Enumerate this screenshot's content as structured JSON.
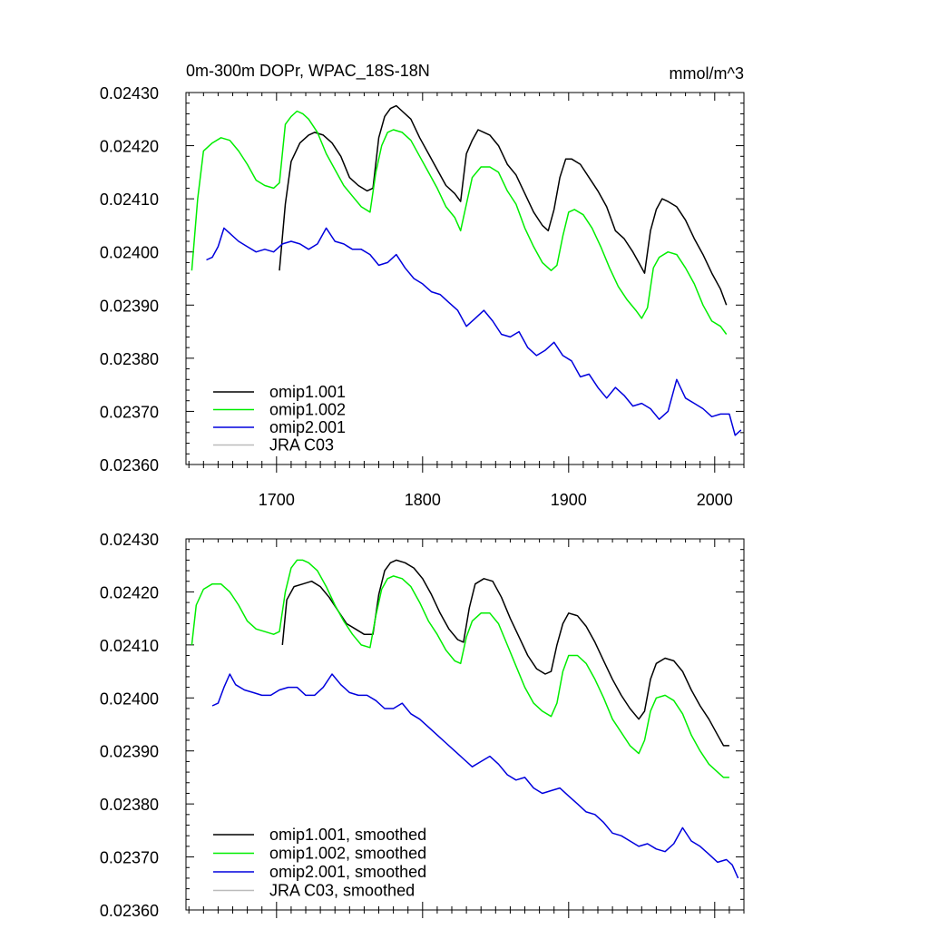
{
  "chart_data": [
    {
      "type": "line",
      "title": "0m-300m DOPr, WPAC_18S-18N",
      "units": "mmol/m^3",
      "xlabel": "",
      "ylabel": "",
      "xlim": [
        1638,
        2020
      ],
      "ylim": [
        0.0236,
        0.0243
      ],
      "x_ticks": [
        1700,
        1800,
        1900,
        2000
      ],
      "x_tick_labels": [
        "1700",
        "1800",
        "1900",
        "2000"
      ],
      "y_ticks": [
        0.0243,
        0.0242,
        0.0241,
        0.024,
        0.0239,
        0.0238,
        0.0237,
        0.0236
      ],
      "y_tick_labels": [
        "0.02430",
        "0.02420",
        "0.02410",
        "0.02400",
        "0.02390",
        "0.02380",
        "0.02370",
        "0.02360"
      ],
      "legend_position": "bottom-left",
      "series": [
        {
          "name": "omip1.001",
          "color": "#000000",
          "x": [
            1702,
            1706,
            1710,
            1716,
            1722,
            1726,
            1732,
            1738,
            1744,
            1750,
            1756,
            1762,
            1766,
            1770,
            1774,
            1778,
            1782,
            1786,
            1792,
            1798,
            1804,
            1810,
            1816,
            1822,
            1826,
            1830,
            1834,
            1838,
            1842,
            1846,
            1852,
            1858,
            1864,
            1870,
            1876,
            1882,
            1886,
            1890,
            1894,
            1898,
            1902,
            1908,
            1914,
            1920,
            1926,
            1932,
            1938,
            1944,
            1948,
            1952,
            1956,
            1960,
            1964,
            1968,
            1974,
            1980,
            1986,
            1992,
            1998,
            2004,
            2008
          ],
          "values": [
            0.023965,
            0.02409,
            0.02417,
            0.024205,
            0.02422,
            0.024225,
            0.02422,
            0.024205,
            0.02418,
            0.02414,
            0.024125,
            0.024115,
            0.02412,
            0.024215,
            0.024255,
            0.02427,
            0.024275,
            0.024265,
            0.02425,
            0.024215,
            0.024185,
            0.024155,
            0.024125,
            0.02411,
            0.024095,
            0.024185,
            0.02421,
            0.02423,
            0.024225,
            0.02422,
            0.0242,
            0.024165,
            0.024145,
            0.02411,
            0.024075,
            0.02405,
            0.02404,
            0.02408,
            0.02414,
            0.024175,
            0.024175,
            0.024165,
            0.02414,
            0.024115,
            0.024085,
            0.02404,
            0.024025,
            0.024,
            0.02398,
            0.02396,
            0.02404,
            0.02408,
            0.0241,
            0.024095,
            0.024085,
            0.02406,
            0.024025,
            0.023995,
            0.02396,
            0.02393,
            0.0239
          ]
        },
        {
          "name": "omip1.002",
          "color": "#00ee00",
          "x": [
            1642,
            1646,
            1650,
            1656,
            1662,
            1668,
            1674,
            1680,
            1686,
            1692,
            1698,
            1702,
            1706,
            1710,
            1714,
            1718,
            1722,
            1728,
            1734,
            1740,
            1746,
            1752,
            1758,
            1764,
            1768,
            1772,
            1776,
            1780,
            1786,
            1792,
            1798,
            1804,
            1810,
            1816,
            1822,
            1826,
            1830,
            1834,
            1840,
            1846,
            1852,
            1858,
            1864,
            1870,
            1876,
            1882,
            1888,
            1892,
            1896,
            1900,
            1904,
            1910,
            1916,
            1922,
            1928,
            1934,
            1940,
            1946,
            1950,
            1954,
            1958,
            1962,
            1968,
            1974,
            1980,
            1986,
            1992,
            1998,
            2004,
            2008
          ],
          "values": [
            0.023965,
            0.0241,
            0.02419,
            0.024205,
            0.024215,
            0.02421,
            0.02419,
            0.024165,
            0.024135,
            0.024125,
            0.02412,
            0.02413,
            0.02424,
            0.024255,
            0.024265,
            0.02426,
            0.02425,
            0.024225,
            0.024185,
            0.024155,
            0.024125,
            0.024105,
            0.024085,
            0.024075,
            0.02415,
            0.0242,
            0.024225,
            0.02423,
            0.024225,
            0.02421,
            0.02418,
            0.02415,
            0.02412,
            0.024085,
            0.024065,
            0.02404,
            0.02409,
            0.02414,
            0.02416,
            0.02416,
            0.02415,
            0.024115,
            0.02409,
            0.024045,
            0.02401,
            0.02398,
            0.023965,
            0.023975,
            0.02403,
            0.024075,
            0.02408,
            0.02407,
            0.024045,
            0.02401,
            0.02397,
            0.023935,
            0.02391,
            0.02389,
            0.023875,
            0.023895,
            0.02397,
            0.02399,
            0.024,
            0.023995,
            0.02397,
            0.02394,
            0.0239,
            0.02387,
            0.02386,
            0.023845
          ]
        },
        {
          "name": "omip2.001",
          "color": "#0000dd",
          "x": [
            1652,
            1656,
            1660,
            1664,
            1668,
            1674,
            1680,
            1686,
            1692,
            1698,
            1704,
            1710,
            1716,
            1722,
            1728,
            1734,
            1740,
            1746,
            1752,
            1758,
            1764,
            1770,
            1776,
            1782,
            1788,
            1794,
            1800,
            1806,
            1812,
            1818,
            1824,
            1830,
            1836,
            1842,
            1848,
            1854,
            1860,
            1866,
            1872,
            1878,
            1884,
            1890,
            1896,
            1902,
            1908,
            1914,
            1920,
            1926,
            1932,
            1938,
            1944,
            1950,
            1956,
            1962,
            1968,
            1974,
            1980,
            1986,
            1992,
            1998,
            2004,
            2010,
            2014,
            2018
          ],
          "values": [
            0.023985,
            0.02399,
            0.02401,
            0.024045,
            0.024035,
            0.02402,
            0.02401,
            0.024,
            0.024005,
            0.024,
            0.024015,
            0.02402,
            0.024015,
            0.024005,
            0.024015,
            0.024045,
            0.02402,
            0.024015,
            0.024005,
            0.024005,
            0.023995,
            0.023975,
            0.02398,
            0.023995,
            0.02397,
            0.02395,
            0.02394,
            0.023925,
            0.02392,
            0.023905,
            0.02389,
            0.02386,
            0.023875,
            0.02389,
            0.02387,
            0.023845,
            0.02384,
            0.02385,
            0.02382,
            0.023805,
            0.023815,
            0.02383,
            0.023805,
            0.023795,
            0.023765,
            0.02377,
            0.023745,
            0.023725,
            0.023745,
            0.02373,
            0.02371,
            0.023715,
            0.023705,
            0.023685,
            0.0237,
            0.02376,
            0.023725,
            0.023715,
            0.023705,
            0.02369,
            0.023695,
            0.023695,
            0.023655,
            0.023665
          ]
        },
        {
          "name": "JRA C03",
          "color": "#bbbbbb",
          "x": [],
          "values": []
        }
      ]
    },
    {
      "type": "line",
      "title": "",
      "xlabel": "",
      "ylabel": "",
      "xlim": [
        1638,
        2020
      ],
      "ylim": [
        0.0236,
        0.0243
      ],
      "x_ticks": [
        1700,
        1800,
        1900,
        2000
      ],
      "y_ticks": [
        0.0243,
        0.0242,
        0.0241,
        0.024,
        0.0239,
        0.0238,
        0.0237,
        0.0236
      ],
      "y_tick_labels": [
        "0.02430",
        "0.02420",
        "0.02410",
        "0.02400",
        "0.02390",
        "0.02380",
        "0.02370",
        "0.02360"
      ],
      "legend_position": "bottom-left",
      "series": [
        {
          "name": "omip1.001, smoothed",
          "color": "#000000",
          "x": [
            1704,
            1707,
            1712,
            1718,
            1724,
            1730,
            1736,
            1742,
            1748,
            1754,
            1760,
            1766,
            1770,
            1774,
            1778,
            1782,
            1788,
            1794,
            1800,
            1806,
            1812,
            1818,
            1824,
            1828,
            1832,
            1836,
            1842,
            1848,
            1854,
            1860,
            1866,
            1872,
            1878,
            1884,
            1888,
            1892,
            1896,
            1900,
            1906,
            1912,
            1918,
            1924,
            1930,
            1936,
            1942,
            1948,
            1952,
            1956,
            1960,
            1966,
            1972,
            1978,
            1984,
            1990,
            1996,
            2002,
            2006,
            2010
          ],
          "values": [
            0.0241,
            0.024185,
            0.02421,
            0.024215,
            0.02422,
            0.02421,
            0.02419,
            0.024165,
            0.02414,
            0.02413,
            0.02412,
            0.02412,
            0.024195,
            0.02424,
            0.024255,
            0.02426,
            0.024255,
            0.024245,
            0.024225,
            0.024195,
            0.02416,
            0.02413,
            0.02411,
            0.024105,
            0.02417,
            0.024215,
            0.024225,
            0.02422,
            0.02419,
            0.02415,
            0.024115,
            0.02408,
            0.024055,
            0.024045,
            0.02405,
            0.0241,
            0.02414,
            0.02416,
            0.024155,
            0.024135,
            0.024105,
            0.02407,
            0.024035,
            0.024005,
            0.02398,
            0.02396,
            0.023975,
            0.024035,
            0.024065,
            0.024075,
            0.02407,
            0.02405,
            0.024015,
            0.023985,
            0.02396,
            0.02393,
            0.02391,
            0.02391
          ]
        },
        {
          "name": "omip1.002, smoothed",
          "color": "#00ee00",
          "x": [
            1642,
            1645,
            1650,
            1656,
            1662,
            1668,
            1674,
            1680,
            1686,
            1692,
            1698,
            1702,
            1706,
            1710,
            1714,
            1718,
            1722,
            1728,
            1734,
            1740,
            1746,
            1752,
            1758,
            1764,
            1768,
            1772,
            1776,
            1780,
            1786,
            1792,
            1798,
            1804,
            1810,
            1816,
            1822,
            1826,
            1830,
            1834,
            1840,
            1846,
            1852,
            1858,
            1864,
            1870,
            1876,
            1882,
            1888,
            1892,
            1896,
            1900,
            1906,
            1912,
            1918,
            1924,
            1930,
            1936,
            1942,
            1948,
            1952,
            1956,
            1960,
            1966,
            1972,
            1978,
            1984,
            1990,
            1996,
            2002,
            2006,
            2010
          ],
          "values": [
            0.0241,
            0.024175,
            0.024205,
            0.024215,
            0.024215,
            0.0242,
            0.024175,
            0.024145,
            0.02413,
            0.024125,
            0.02412,
            0.024125,
            0.0242,
            0.024245,
            0.02426,
            0.02426,
            0.024255,
            0.02424,
            0.02421,
            0.024175,
            0.024145,
            0.02412,
            0.0241,
            0.024095,
            0.024155,
            0.024205,
            0.024225,
            0.02423,
            0.024225,
            0.02421,
            0.02418,
            0.024145,
            0.02412,
            0.02409,
            0.02407,
            0.024065,
            0.024115,
            0.024145,
            0.02416,
            0.02416,
            0.02414,
            0.0241,
            0.02406,
            0.02402,
            0.02399,
            0.023975,
            0.023965,
            0.02399,
            0.02405,
            0.02408,
            0.02408,
            0.024065,
            0.024035,
            0.024,
            0.02396,
            0.023935,
            0.02391,
            0.023895,
            0.02392,
            0.023975,
            0.024,
            0.024005,
            0.023995,
            0.02397,
            0.02393,
            0.0239,
            0.023875,
            0.02386,
            0.02385,
            0.02385
          ]
        },
        {
          "name": "omip2.001, smoothed",
          "color": "#0000dd",
          "x": [
            1656,
            1660,
            1664,
            1668,
            1672,
            1678,
            1684,
            1690,
            1696,
            1702,
            1708,
            1714,
            1720,
            1726,
            1732,
            1738,
            1744,
            1750,
            1756,
            1762,
            1768,
            1774,
            1780,
            1786,
            1792,
            1798,
            1804,
            1810,
            1816,
            1822,
            1828,
            1834,
            1840,
            1846,
            1852,
            1858,
            1864,
            1870,
            1876,
            1882,
            1888,
            1894,
            1900,
            1906,
            1912,
            1918,
            1924,
            1930,
            1936,
            1942,
            1948,
            1954,
            1960,
            1966,
            1972,
            1978,
            1984,
            1990,
            1996,
            2002,
            2008,
            2012,
            2016
          ],
          "values": [
            0.023985,
            0.02399,
            0.02402,
            0.024045,
            0.024025,
            0.024015,
            0.02401,
            0.024005,
            0.024005,
            0.024015,
            0.02402,
            0.02402,
            0.024005,
            0.024005,
            0.02402,
            0.024045,
            0.024025,
            0.02401,
            0.024005,
            0.024005,
            0.023995,
            0.02398,
            0.02398,
            0.02399,
            0.02397,
            0.02396,
            0.023945,
            0.02393,
            0.023915,
            0.0239,
            0.023885,
            0.02387,
            0.02388,
            0.02389,
            0.023875,
            0.023855,
            0.023845,
            0.02385,
            0.02383,
            0.02382,
            0.023825,
            0.02383,
            0.023815,
            0.0238,
            0.023785,
            0.02378,
            0.023765,
            0.023745,
            0.02374,
            0.02373,
            0.02372,
            0.023725,
            0.023715,
            0.02371,
            0.023725,
            0.023755,
            0.02373,
            0.02372,
            0.023705,
            0.02369,
            0.023695,
            0.023685,
            0.02366
          ]
        },
        {
          "name": "JRA C03, smoothed",
          "color": "#bbbbbb",
          "x": [],
          "values": []
        }
      ]
    }
  ]
}
